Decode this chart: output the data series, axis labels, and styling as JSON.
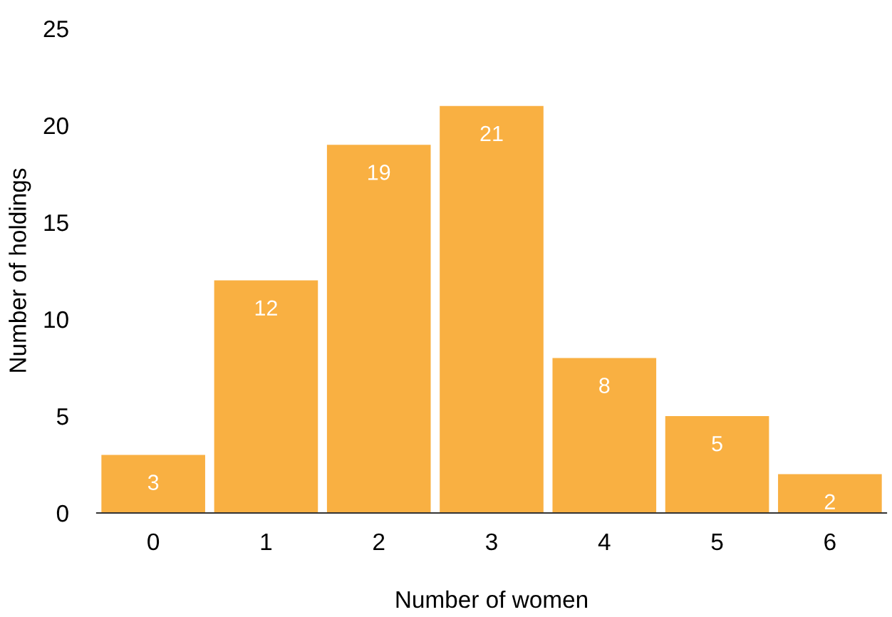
{
  "chart_data": {
    "type": "bar",
    "xlabel": "Number of women",
    "ylabel": "Number of holdings",
    "categories": [
      "0",
      "1",
      "2",
      "3",
      "4",
      "5",
      "6"
    ],
    "values": [
      3,
      12,
      19,
      21,
      8,
      5,
      2
    ],
    "color": "#f9b042",
    "ylim": [
      0,
      25
    ],
    "yticks": [
      0,
      5,
      10,
      15,
      20,
      25
    ],
    "grid": false,
    "data_labels": true
  }
}
